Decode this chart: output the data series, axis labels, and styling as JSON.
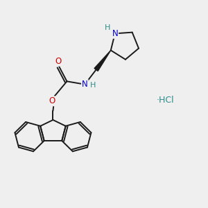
{
  "background_color": "#efefef",
  "bond_color": "#1a1a1a",
  "nitrogen_color": "#0000cc",
  "oxygen_color": "#cc0000",
  "teal_color": "#2d8c8c",
  "hcl_color": "#2d8c8c",
  "figsize": [
    3.0,
    3.0
  ],
  "dpi": 100,
  "xlim": [
    0,
    10
  ],
  "ylim": [
    0,
    10
  ]
}
